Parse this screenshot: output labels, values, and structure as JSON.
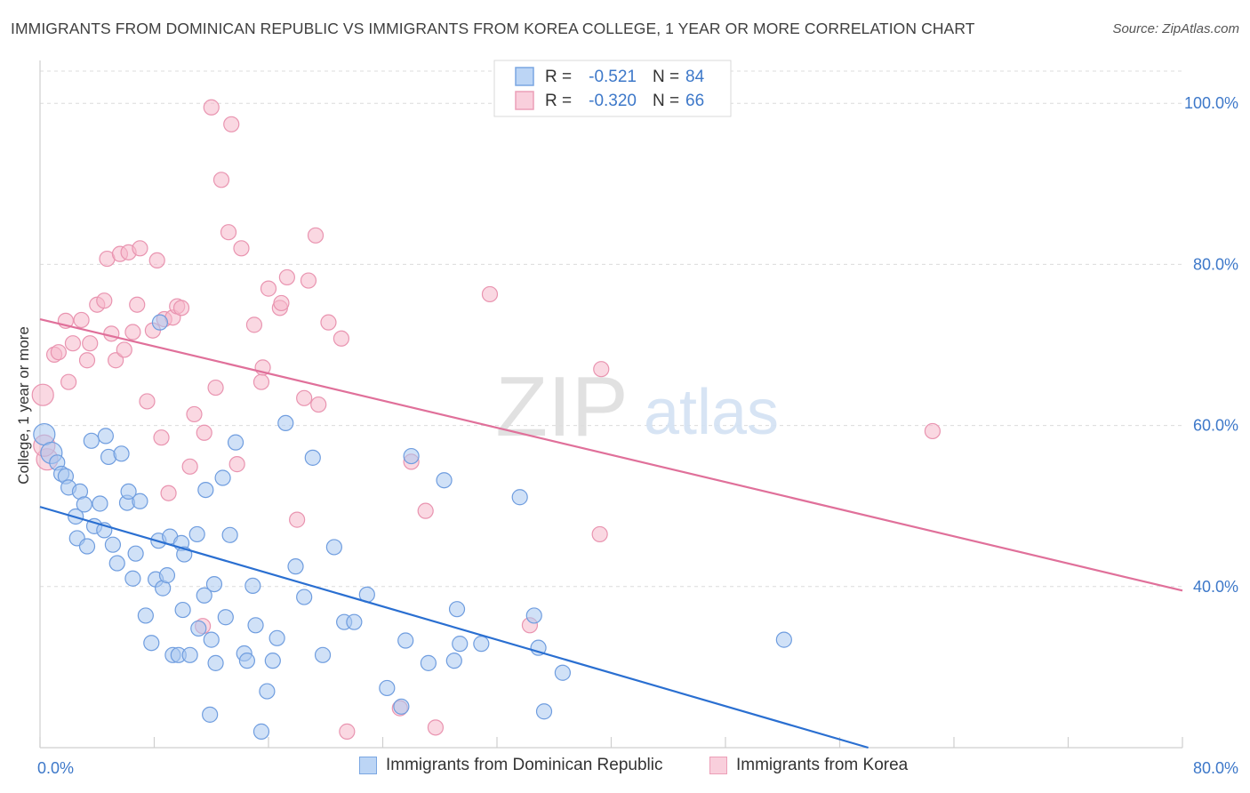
{
  "title": "IMMIGRANTS FROM DOMINICAN REPUBLIC VS IMMIGRANTS FROM KOREA COLLEGE, 1 YEAR OR MORE CORRELATION CHART",
  "source": "Source: ZipAtlas.com",
  "watermark": {
    "zip": "ZIP",
    "atlas": "atlas"
  },
  "colors": {
    "blue_fill": "#a9c8f0",
    "blue_stroke": "#6f9ddf",
    "blue_line": "#2a6fd1",
    "pink_fill": "#f5b8cb",
    "pink_stroke": "#e994b0",
    "pink_line": "#e0709a",
    "value_text": "#3d78c9",
    "grid": "#dcdcdc"
  },
  "legend_top": [
    {
      "r_label": "R =",
      "r_value": "-0.521",
      "n_label": "N =",
      "n_value": "84",
      "color": "blue"
    },
    {
      "r_label": "R =",
      "r_value": "-0.320",
      "n_label": "N =",
      "n_value": "66",
      "color": "pink"
    }
  ],
  "legend_bottom": [
    {
      "label": "Immigrants from Dominican Republic",
      "color": "blue"
    },
    {
      "label": "Immigrants from Korea",
      "color": "pink"
    }
  ],
  "chart_data": {
    "type": "scatter",
    "title": "IMMIGRANTS FROM DOMINICAN REPUBLIC VS IMMIGRANTS FROM KOREA COLLEGE, 1 YEAR OR MORE CORRELATION CHART",
    "xlabel": "",
    "ylabel": "College, 1 year or more",
    "xlim": [
      0,
      80
    ],
    "ylim": [
      20,
      104
    ],
    "x_tick_labels": [
      "0.0%",
      "80.0%"
    ],
    "y_ticks": [
      40,
      60,
      80,
      100
    ],
    "y_tick_labels": [
      "40.0%",
      "60.0%",
      "80.0%",
      "100.0%"
    ],
    "grid": true,
    "series": [
      {
        "name": "Immigrants from Dominican Republic",
        "color": "blue",
        "trend": {
          "x0": 0,
          "y0": 49.9,
          "x1": 58.0,
          "y1": 20.0
        },
        "points": [
          [
            0.3,
            58.9
          ],
          [
            0.8,
            56.6
          ],
          [
            1.2,
            55.4
          ],
          [
            1.5,
            54.0
          ],
          [
            1.8,
            53.7
          ],
          [
            2.0,
            52.3
          ],
          [
            2.5,
            48.7
          ],
          [
            2.6,
            46.0
          ],
          [
            2.8,
            51.8
          ],
          [
            3.1,
            50.2
          ],
          [
            3.3,
            45.0
          ],
          [
            3.6,
            58.1
          ],
          [
            3.8,
            47.5
          ],
          [
            4.2,
            50.3
          ],
          [
            4.5,
            47.0
          ],
          [
            4.6,
            58.7
          ],
          [
            4.8,
            56.1
          ],
          [
            5.1,
            45.2
          ],
          [
            5.4,
            42.9
          ],
          [
            5.7,
            56.5
          ],
          [
            6.1,
            50.4
          ],
          [
            6.2,
            51.8
          ],
          [
            6.5,
            41.0
          ],
          [
            6.7,
            44.1
          ],
          [
            7.0,
            50.6
          ],
          [
            7.4,
            36.4
          ],
          [
            7.8,
            33.0
          ],
          [
            8.1,
            40.9
          ],
          [
            8.3,
            45.7
          ],
          [
            8.6,
            39.8
          ],
          [
            8.9,
            41.4
          ],
          [
            9.1,
            46.2
          ],
          [
            9.3,
            31.5
          ],
          [
            9.7,
            31.5
          ],
          [
            9.9,
            45.4
          ],
          [
            10.0,
            37.1
          ],
          [
            10.1,
            44.0
          ],
          [
            10.5,
            31.5
          ],
          [
            11.0,
            46.5
          ],
          [
            11.1,
            34.8
          ],
          [
            11.5,
            38.9
          ],
          [
            11.6,
            52.0
          ],
          [
            11.9,
            24.1
          ],
          [
            12.2,
            40.3
          ],
          [
            12.3,
            30.5
          ],
          [
            12.8,
            53.5
          ],
          [
            13.0,
            36.2
          ],
          [
            13.3,
            46.4
          ],
          [
            13.7,
            57.9
          ],
          [
            14.3,
            31.7
          ],
          [
            14.5,
            30.8
          ],
          [
            14.9,
            40.1
          ],
          [
            15.1,
            35.2
          ],
          [
            15.9,
            27.0
          ],
          [
            16.3,
            30.8
          ],
          [
            16.6,
            33.6
          ],
          [
            17.2,
            60.3
          ],
          [
            17.9,
            42.5
          ],
          [
            18.5,
            38.7
          ],
          [
            19.1,
            56.0
          ],
          [
            19.8,
            31.5
          ],
          [
            20.6,
            44.9
          ],
          [
            21.3,
            35.6
          ],
          [
            22.0,
            35.6
          ],
          [
            22.9,
            39.0
          ],
          [
            24.3,
            27.4
          ],
          [
            25.3,
            25.1
          ],
          [
            25.6,
            33.3
          ],
          [
            26.0,
            56.2
          ],
          [
            27.2,
            30.5
          ],
          [
            28.3,
            53.2
          ],
          [
            29.0,
            30.8
          ],
          [
            29.2,
            37.2
          ],
          [
            29.4,
            32.9
          ],
          [
            30.9,
            32.9
          ],
          [
            33.6,
            51.1
          ],
          [
            34.6,
            36.4
          ],
          [
            34.9,
            32.4
          ],
          [
            35.3,
            24.5
          ],
          [
            36.6,
            29.3
          ],
          [
            52.1,
            33.4
          ],
          [
            8.4,
            72.8
          ],
          [
            12.0,
            33.4
          ],
          [
            15.5,
            22.0
          ]
        ]
      },
      {
        "name": "Immigrants from Korea",
        "color": "pink",
        "trend": {
          "x0": 0,
          "y0": 73.2,
          "x1": 80,
          "y1": 39.5
        },
        "points": [
          [
            0.2,
            63.8
          ],
          [
            0.5,
            55.8
          ],
          [
            1.0,
            68.8
          ],
          [
            1.3,
            69.1
          ],
          [
            1.8,
            73.0
          ],
          [
            2.0,
            65.4
          ],
          [
            2.3,
            70.2
          ],
          [
            2.9,
            73.1
          ],
          [
            3.3,
            68.1
          ],
          [
            3.5,
            70.2
          ],
          [
            4.0,
            75.0
          ],
          [
            4.5,
            75.5
          ],
          [
            4.7,
            80.7
          ],
          [
            5.0,
            71.4
          ],
          [
            5.3,
            68.1
          ],
          [
            5.6,
            81.3
          ],
          [
            5.9,
            69.4
          ],
          [
            6.2,
            81.5
          ],
          [
            6.5,
            71.6
          ],
          [
            6.8,
            75.0
          ],
          [
            7.0,
            82.0
          ],
          [
            7.5,
            63.0
          ],
          [
            7.9,
            71.8
          ],
          [
            8.2,
            80.5
          ],
          [
            8.5,
            58.5
          ],
          [
            8.7,
            73.2
          ],
          [
            9.0,
            51.6
          ],
          [
            9.3,
            73.4
          ],
          [
            9.6,
            74.8
          ],
          [
            9.9,
            74.6
          ],
          [
            10.5,
            54.9
          ],
          [
            10.8,
            61.4
          ],
          [
            11.4,
            35.1
          ],
          [
            11.5,
            59.1
          ],
          [
            12.0,
            99.5
          ],
          [
            12.3,
            64.7
          ],
          [
            12.7,
            90.5
          ],
          [
            13.2,
            84.0
          ],
          [
            13.4,
            97.4
          ],
          [
            13.8,
            55.2
          ],
          [
            14.1,
            82.0
          ],
          [
            15.0,
            72.5
          ],
          [
            15.5,
            65.4
          ],
          [
            15.6,
            67.2
          ],
          [
            16.0,
            77.0
          ],
          [
            16.8,
            74.6
          ],
          [
            16.9,
            75.2
          ],
          [
            17.3,
            78.4
          ],
          [
            18.0,
            48.3
          ],
          [
            18.5,
            63.4
          ],
          [
            18.8,
            78.0
          ],
          [
            19.3,
            83.6
          ],
          [
            19.5,
            62.6
          ],
          [
            20.2,
            72.8
          ],
          [
            21.1,
            70.8
          ],
          [
            21.5,
            22.0
          ],
          [
            25.2,
            24.9
          ],
          [
            26.0,
            55.5
          ],
          [
            27.0,
            49.4
          ],
          [
            31.5,
            76.3
          ],
          [
            34.3,
            35.2
          ],
          [
            39.2,
            46.5
          ],
          [
            39.3,
            67.0
          ],
          [
            62.5,
            59.3
          ],
          [
            0.3,
            57.5
          ],
          [
            27.7,
            22.5
          ]
        ]
      }
    ]
  }
}
